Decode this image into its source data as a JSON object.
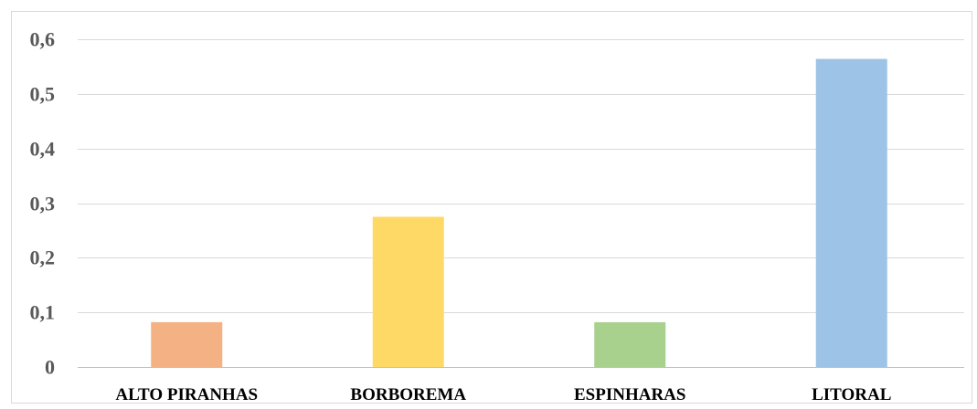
{
  "chart_data": {
    "type": "bar",
    "categories": [
      "ALTO PIRANHAS",
      "BORBOREMA",
      "ESPINHARAS",
      "LITORAL"
    ],
    "values": [
      0.082,
      0.275,
      0.082,
      0.564
    ],
    "colors": [
      "#f4b183",
      "#ffd966",
      "#a9d18e",
      "#9dc3e6"
    ],
    "title": "",
    "xlabel": "",
    "ylabel": "",
    "ylim": [
      0,
      0.6
    ],
    "yticks": [
      0,
      0.1,
      0.2,
      0.3,
      0.4,
      0.5,
      0.6
    ],
    "ytick_labels": [
      "0",
      "0,1",
      "0,2",
      "0,3",
      "0,4",
      "0,5",
      "0,6"
    ],
    "grid": true,
    "legend": "none"
  }
}
